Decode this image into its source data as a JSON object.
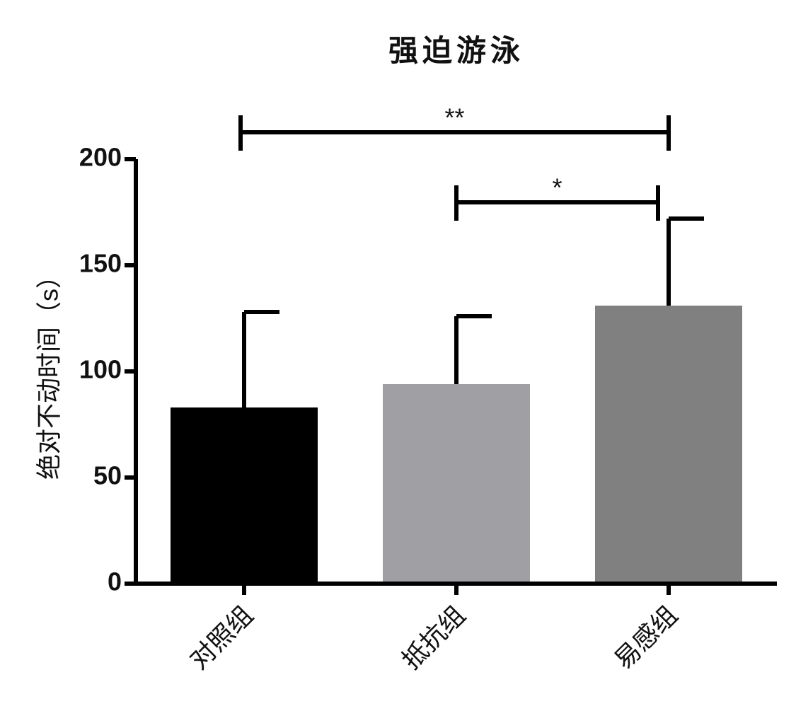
{
  "chart_data": {
    "type": "bar",
    "title": "强迫游泳",
    "y_label": "绝对不动时间（s）",
    "categories": [
      "对照组",
      "抵抗组",
      "易感组"
    ],
    "values": [
      83,
      94,
      131
    ],
    "errors": [
      45,
      32,
      41
    ],
    "colors": [
      "#000000",
      "#a0a0a4",
      "#808080"
    ],
    "ylim": [
      0,
      200
    ],
    "yticks": [
      0,
      50,
      100,
      150,
      200
    ],
    "annotations": [
      {
        "from": 0,
        "to": 2,
        "label": "**"
      },
      {
        "from": 1,
        "to": 2,
        "label": "*"
      }
    ]
  }
}
